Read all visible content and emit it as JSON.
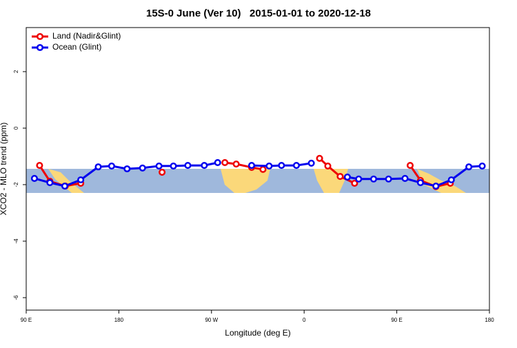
{
  "chart_data": {
    "type": "line",
    "title": "15S-0 June (Ver 10)   2015-01-01 to 2020-12-18",
    "x_label": "Longitude (deg E)",
    "y_label": "XCO2 - MLO trend (ppm)",
    "xlim": [
      90,
      540
    ],
    "xticks": [
      {
        "value": 90,
        "label": "90 E"
      },
      {
        "value": 180,
        "label": "180"
      },
      {
        "value": 270,
        "label": "90 W"
      },
      {
        "value": 360,
        "label": "0"
      },
      {
        "value": 450,
        "label": "90 E"
      },
      {
        "value": 540,
        "label": "180"
      }
    ],
    "ylim": [
      -6.44,
      3.56
    ],
    "yticks": [
      -6,
      -4,
      -2,
      0,
      2
    ],
    "legend": "top-left",
    "series": [
      {
        "name": "Land (Nadir&Glint)",
        "color": "#ee0000",
        "x": [
          103,
          113,
          128,
          143,
          null,
          222,
          null,
          283,
          294,
          309,
          320,
          null,
          375,
          383,
          395,
          409,
          null,
          463,
          473,
          488,
          502
        ],
        "values": [
          -1.32,
          -1.88,
          -2.05,
          -1.95,
          null,
          -1.56,
          null,
          -1.22,
          -1.27,
          -1.39,
          -1.46,
          null,
          -1.07,
          -1.34,
          -1.71,
          -1.95,
          null,
          -1.32,
          -1.85,
          -2.07,
          -1.95
        ]
      },
      {
        "name": "Ocean (Glint)",
        "color": "#0000ee",
        "x": [
          98,
          113,
          127.5,
          143,
          160,
          173,
          188,
          203,
          219,
          233,
          247,
          263,
          276,
          null,
          309,
          326,
          338,
          352.5,
          367,
          null,
          402,
          413,
          427.5,
          442,
          458,
          473,
          488,
          503,
          520,
          533
        ],
        "values": [
          -1.78,
          -1.93,
          -2.05,
          -1.83,
          -1.37,
          -1.34,
          -1.44,
          -1.41,
          -1.34,
          -1.34,
          -1.32,
          -1.32,
          -1.22,
          null,
          -1.32,
          -1.34,
          -1.32,
          -1.32,
          -1.24,
          null,
          -1.73,
          -1.8,
          -1.8,
          -1.8,
          -1.78,
          -1.93,
          -2.05,
          -1.83,
          -1.37,
          -1.34
        ]
      }
    ]
  }
}
